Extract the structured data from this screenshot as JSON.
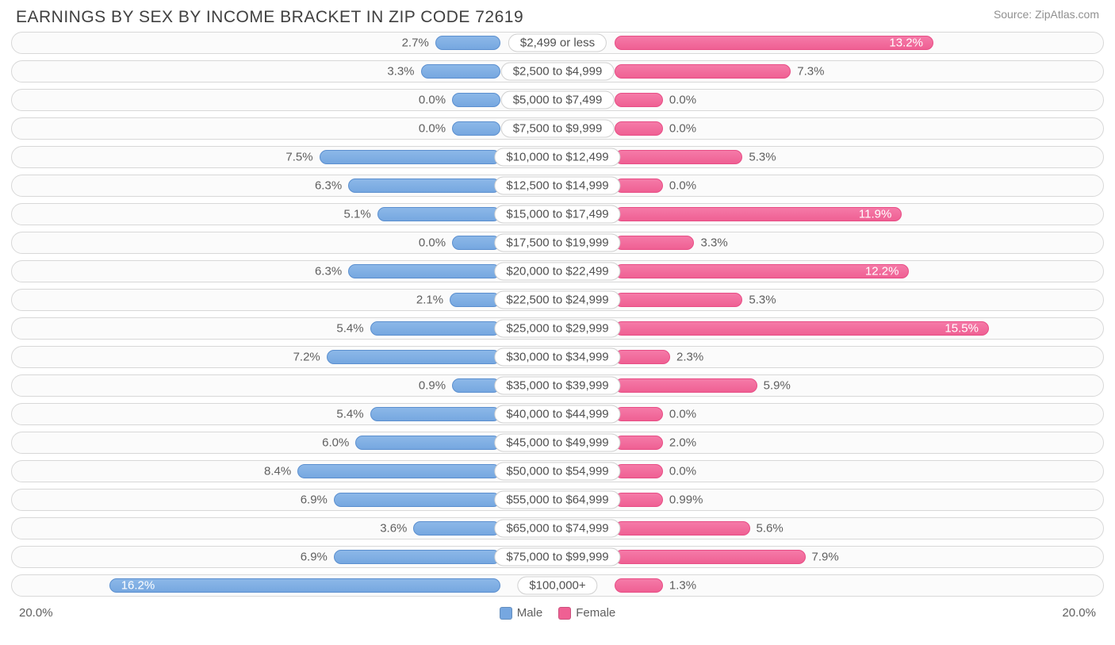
{
  "title": "EARNINGS BY SEX BY INCOME BRACKET IN ZIP CODE 72619",
  "source": "Source: ZipAtlas.com",
  "axis_max": 20.0,
  "axis_label_left": "20.0%",
  "axis_label_right": "20.0%",
  "min_bar_pct": 2.0,
  "label_inside_threshold": 11.0,
  "colors": {
    "male_fill": "#76a7e0",
    "male_border": "#5b8fcf",
    "female_fill": "#ef6093",
    "female_border": "#e84d85",
    "track_bg": "#fbfbfb",
    "track_border": "#d8d8d8",
    "text": "#606060",
    "title_text": "#404040",
    "source_text": "#909090"
  },
  "legend": {
    "male": "Male",
    "female": "Female"
  },
  "rows": [
    {
      "label": "$2,499 or less",
      "male": 2.7,
      "female": 13.2
    },
    {
      "label": "$2,500 to $4,999",
      "male": 3.3,
      "female": 7.3
    },
    {
      "label": "$5,000 to $7,499",
      "male": 0.0,
      "female": 0.0
    },
    {
      "label": "$7,500 to $9,999",
      "male": 0.0,
      "female": 0.0
    },
    {
      "label": "$10,000 to $12,499",
      "male": 7.5,
      "female": 5.3
    },
    {
      "label": "$12,500 to $14,999",
      "male": 6.3,
      "female": 0.0
    },
    {
      "label": "$15,000 to $17,499",
      "male": 5.1,
      "female": 11.9
    },
    {
      "label": "$17,500 to $19,999",
      "male": 0.0,
      "female": 3.3
    },
    {
      "label": "$20,000 to $22,499",
      "male": 6.3,
      "female": 12.2
    },
    {
      "label": "$22,500 to $24,999",
      "male": 2.1,
      "female": 5.3
    },
    {
      "label": "$25,000 to $29,999",
      "male": 5.4,
      "female": 15.5
    },
    {
      "label": "$30,000 to $34,999",
      "male": 7.2,
      "female": 2.3
    },
    {
      "label": "$35,000 to $39,999",
      "male": 0.9,
      "female": 5.9
    },
    {
      "label": "$40,000 to $44,999",
      "male": 5.4,
      "female": 0.0
    },
    {
      "label": "$45,000 to $49,999",
      "male": 6.0,
      "female": 2.0
    },
    {
      "label": "$50,000 to $54,999",
      "male": 8.4,
      "female": 0.0
    },
    {
      "label": "$55,000 to $64,999",
      "male": 6.9,
      "female": 0.99
    },
    {
      "label": "$65,000 to $74,999",
      "male": 3.6,
      "female": 5.6
    },
    {
      "label": "$75,000 to $99,999",
      "male": 6.9,
      "female": 7.9
    },
    {
      "label": "$100,000+",
      "male": 16.2,
      "female": 1.3
    }
  ]
}
